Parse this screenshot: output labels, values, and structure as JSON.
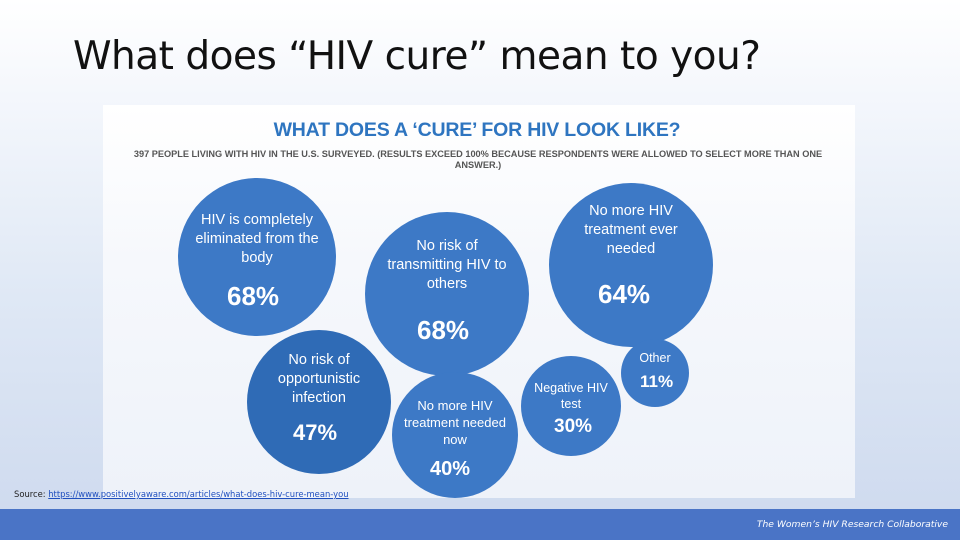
{
  "slide": {
    "title": "What does “HIV cure” mean to you?",
    "source_label": "Source: ",
    "source_link": "https://www.positivelyaware.com/articles/what-does-hiv-cure-mean-you",
    "footer": "The Women’s HIV Research Collaborative"
  },
  "chart_data": {
    "type": "bubble",
    "title": "WHAT DOES A ‘CURE’ FOR HIV LOOK LIKE?",
    "subtitle": "397 PEOPLE LIVING WITH HIV IN THE U.S. SURVEYED. (RESULTS EXCEED 100% BECAUSE RESPONDENTS WERE ALLOWED TO SELECT MORE THAN ONE ANSWER.)",
    "unit": "%",
    "categories": [
      "HIV is completely eliminated from the body",
      "No risk of transmitting HIV to others",
      "No more HIV treatment ever needed",
      "No risk of opportunistic infection",
      "No more HIV treatment needed now",
      "Negative HIV test",
      "Other"
    ],
    "values": [
      68,
      68,
      64,
      47,
      40,
      30,
      11
    ],
    "bubbles": [
      {
        "label": "HIV is completely eliminated from the body",
        "value_text": "68%",
        "color": "#3d79c6"
      },
      {
        "label": "No risk of transmitting HIV to others",
        "value_text": "68%",
        "color": "#3d79c6"
      },
      {
        "label": "No more HIV treatment ever needed",
        "value_text": "64%",
        "color": "#3d79c6"
      },
      {
        "label": "No risk of opportunistic infection",
        "value_text": "47%",
        "color": "#2f6bb6"
      },
      {
        "label": "No more HIV treatment needed now",
        "value_text": "40%",
        "color": "#3d79c6"
      },
      {
        "label": "Negative HIV test",
        "value_text": "30%",
        "color": "#3d79c6"
      },
      {
        "label": "Other",
        "value_text": "11%",
        "color": "#3d79c6"
      }
    ]
  }
}
